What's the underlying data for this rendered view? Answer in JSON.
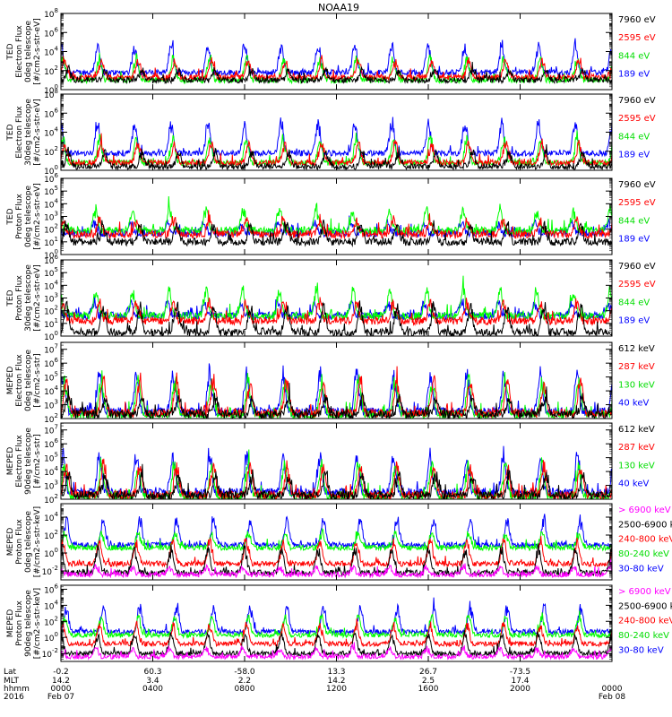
{
  "title": "NOAA19",
  "colors": {
    "black": "#000000",
    "red": "#ff0000",
    "green": "#00ff00",
    "blue": "#0000ff",
    "magenta": "#ff00ff"
  },
  "chart_data": {
    "type": "line",
    "title": "NOAA19",
    "x_ticks": [
      "0000",
      "0400",
      "0800",
      "1200",
      "1600",
      "2000",
      "0000"
    ],
    "x_range_hours": [
      0,
      24
    ],
    "footer": {
      "row_labels": [
        "Lat",
        "MLT",
        "hhmm",
        "2016"
      ],
      "columns": [
        {
          "hour": 0,
          "lat": "-0.2",
          "mlt": "14.2",
          "hhmm": "0000",
          "date": "Feb 07"
        },
        {
          "hour": 4,
          "lat": "60.3",
          "mlt": "3.4",
          "hhmm": "0400",
          "date": ""
        },
        {
          "hour": 8,
          "lat": "-58.0",
          "mlt": "2.2",
          "hhmm": "0800",
          "date": ""
        },
        {
          "hour": 12,
          "lat": "13.3",
          "mlt": "14.2",
          "hhmm": "1200",
          "date": ""
        },
        {
          "hour": 16,
          "lat": "26.7",
          "mlt": "2.5",
          "hhmm": "1600",
          "date": ""
        },
        {
          "hour": 20,
          "lat": "-73.5",
          "mlt": "17.4",
          "hhmm": "2000",
          "date": ""
        },
        {
          "hour": 24,
          "lat": "",
          "mlt": "",
          "hhmm": "0000",
          "date": "Feb 08"
        }
      ]
    },
    "panels": [
      {
        "ylabel": [
          "TED",
          "Electron Flux",
          "0deg telescope",
          "[#/cm2-s-str-eV]"
        ],
        "yticks": [
          {
            "exp": 0,
            "label": "10",
            "sup": "0"
          },
          {
            "exp": 2,
            "label": "10",
            "sup": "2"
          },
          {
            "exp": 4,
            "label": "10",
            "sup": "4"
          },
          {
            "exp": 6,
            "label": "10",
            "sup": "6"
          },
          {
            "exp": 8,
            "label": "10",
            "sup": "8"
          }
        ],
        "ylim_log10": [
          0,
          8
        ],
        "series": [
          {
            "name": "7960 eV",
            "color": "#000000",
            "base": 1.0,
            "peak": 2.3,
            "period": 1.6,
            "phase": 0.05
          },
          {
            "name": "2595 eV",
            "color": "#ff0000",
            "base": 1.3,
            "peak": 3.4,
            "period": 1.6,
            "phase": 0.15
          },
          {
            "name": "844 eV",
            "color": "#00ff00",
            "base": 1.0,
            "peak": 3.8,
            "period": 1.6,
            "phase": 0.2
          },
          {
            "name": "189 eV",
            "color": "#0000ff",
            "base": 1.8,
            "peak": 5.2,
            "period": 1.6,
            "phase": 0.25
          }
        ]
      },
      {
        "ylabel": [
          "TED",
          "Electron Flux",
          "30deg telescope",
          "[#/cm2-s-str-eV]"
        ],
        "yticks": [
          {
            "exp": 0,
            "label": "10",
            "sup": "0"
          },
          {
            "exp": 2,
            "label": "10",
            "sup": "2"
          },
          {
            "exp": 4,
            "label": "10",
            "sup": "4"
          },
          {
            "exp": 6,
            "label": "10",
            "sup": "6"
          },
          {
            "exp": 8,
            "label": "10",
            "sup": "8"
          }
        ],
        "ylim_log10": [
          0,
          8
        ],
        "series": [
          {
            "name": "7960 eV",
            "color": "#000000",
            "base": 0.4,
            "peak": 2.2,
            "period": 1.6,
            "phase": 0.05
          },
          {
            "name": "2595 eV",
            "color": "#ff0000",
            "base": 0.8,
            "peak": 3.2,
            "period": 1.6,
            "phase": 0.15
          },
          {
            "name": "844 eV",
            "color": "#00ff00",
            "base": 0.8,
            "peak": 3.8,
            "period": 1.6,
            "phase": 0.2
          },
          {
            "name": "189 eV",
            "color": "#0000ff",
            "base": 1.8,
            "peak": 5.5,
            "period": 1.6,
            "phase": 0.25
          }
        ]
      },
      {
        "ylabel": [
          "TED",
          "Proton Flux",
          "0deg telescope",
          "[#/cm2-s-str-eV]"
        ],
        "yticks": [
          {
            "exp": 0,
            "label": "10",
            "sup": "0"
          },
          {
            "exp": 1,
            "label": "10",
            "sup": "1"
          },
          {
            "exp": 2,
            "label": "10",
            "sup": "2"
          },
          {
            "exp": 3,
            "label": "10",
            "sup": "3"
          },
          {
            "exp": 4,
            "label": "10",
            "sup": "4"
          },
          {
            "exp": 5,
            "label": "10",
            "sup": "5"
          },
          {
            "exp": 6,
            "label": "10",
            "sup": "6"
          }
        ],
        "ylim_log10": [
          0,
          6
        ],
        "series": [
          {
            "name": "7960 eV",
            "color": "#000000",
            "base": 1.0,
            "peak": 2.6,
            "period": 1.6,
            "phase": 0.1
          },
          {
            "name": "2595 eV",
            "color": "#ff0000",
            "base": 1.6,
            "peak": 3.0,
            "period": 1.6,
            "phase": 0.2
          },
          {
            "name": "844 eV",
            "color": "#00ff00",
            "base": 1.9,
            "peak": 3.9,
            "period": 1.6,
            "phase": 0.3
          },
          {
            "name": "189 eV",
            "color": "#0000ff",
            "base": 1.7,
            "peak": 2.6,
            "period": 1.6,
            "phase": 0.35
          }
        ]
      },
      {
        "ylabel": [
          "TED",
          "Proton Flux",
          "30deg telescope",
          "[#/cm2-s-str-eV]"
        ],
        "yticks": [
          {
            "exp": 0,
            "label": "10",
            "sup": "0"
          },
          {
            "exp": 1,
            "label": "10",
            "sup": "1"
          },
          {
            "exp": 2,
            "label": "10",
            "sup": "2"
          },
          {
            "exp": 3,
            "label": "10",
            "sup": "3"
          },
          {
            "exp": 4,
            "label": "10",
            "sup": "4"
          },
          {
            "exp": 5,
            "label": "10",
            "sup": "5"
          },
          {
            "exp": 6,
            "label": "10",
            "sup": "6"
          }
        ],
        "ylim_log10": [
          0,
          6
        ],
        "series": [
          {
            "name": "7960 eV",
            "color": "#000000",
            "base": 0.3,
            "peak": 2.8,
            "period": 1.6,
            "phase": 0.1
          },
          {
            "name": "2595 eV",
            "color": "#ff0000",
            "base": 1.2,
            "peak": 3.0,
            "period": 1.6,
            "phase": 0.2
          },
          {
            "name": "844 eV",
            "color": "#00ff00",
            "base": 1.6,
            "peak": 4.0,
            "period": 1.6,
            "phase": 0.3
          },
          {
            "name": "189 eV",
            "color": "#0000ff",
            "base": 1.6,
            "peak": 2.8,
            "period": 1.6,
            "phase": 0.35
          }
        ]
      },
      {
        "ylabel": [
          "MEPED",
          "Electron Flux",
          "0deg telescope",
          "[#/cm2-s-str]"
        ],
        "yticks": [
          {
            "exp": 2,
            "label": "10",
            "sup": "2"
          },
          {
            "exp": 3,
            "label": "10",
            "sup": "3"
          },
          {
            "exp": 4,
            "label": "10",
            "sup": "4"
          },
          {
            "exp": 5,
            "label": "10",
            "sup": "5"
          },
          {
            "exp": 6,
            "label": "10",
            "sup": "6"
          },
          {
            "exp": 7,
            "label": "10",
            "sup": "7"
          }
        ],
        "ylim_log10": [
          2,
          7.5
        ],
        "series": [
          {
            "name": "612 keV",
            "color": "#000000",
            "base": 2.3,
            "peak": 3.8,
            "period": 1.6,
            "phase": 0.05
          },
          {
            "name": "287 keV",
            "color": "#ff0000",
            "base": 2.4,
            "peak": 5.2,
            "period": 1.6,
            "phase": 0.1
          },
          {
            "name": "130 keV",
            "color": "#00ff00",
            "base": 2.3,
            "peak": 5.3,
            "period": 1.6,
            "phase": 0.15
          },
          {
            "name": "40 keV",
            "color": "#0000ff",
            "base": 2.5,
            "peak": 5.8,
            "period": 1.6,
            "phase": 0.2
          }
        ]
      },
      {
        "ylabel": [
          "MEPED",
          "Electron Flux",
          "90deg telescope",
          "[#/cm2-s-str]"
        ],
        "yticks": [
          {
            "exp": 2,
            "label": "10",
            "sup": "2"
          },
          {
            "exp": 3,
            "label": "10",
            "sup": "3"
          },
          {
            "exp": 4,
            "label": "10",
            "sup": "4"
          },
          {
            "exp": 5,
            "label": "10",
            "sup": "5"
          },
          {
            "exp": 6,
            "label": "10",
            "sup": "6"
          },
          {
            "exp": 7,
            "label": "10",
            "sup": "7"
          }
        ],
        "ylim_log10": [
          2,
          7.5
        ],
        "series": [
          {
            "name": "612 keV",
            "color": "#000000",
            "base": 2.3,
            "peak": 4.0,
            "period": 1.6,
            "phase": 0.05
          },
          {
            "name": "287 keV",
            "color": "#ff0000",
            "base": 2.3,
            "peak": 4.8,
            "period": 1.6,
            "phase": 0.1
          },
          {
            "name": "130 keV",
            "color": "#00ff00",
            "base": 2.2,
            "peak": 5.0,
            "period": 1.6,
            "phase": 0.15
          },
          {
            "name": "40 keV",
            "color": "#0000ff",
            "base": 2.5,
            "peak": 5.6,
            "period": 1.6,
            "phase": 0.2
          }
        ]
      },
      {
        "ylabel": [
          "MEPED",
          "Proton Flux",
          "0deg telescope",
          "[#/cm2-s-str-keV]"
        ],
        "yticks": [
          {
            "exp": -2,
            "label": "10",
            "sup": "-2"
          },
          {
            "exp": 0,
            "label": "10",
            "sup": "0"
          },
          {
            "exp": 2,
            "label": "10",
            "sup": "2"
          },
          {
            "exp": 4,
            "label": "10",
            "sup": "4"
          }
        ],
        "ylim_log10": [
          -3,
          5.5
        ],
        "series": [
          {
            "name": "> 6900 keV",
            "color": "#ff00ff",
            "base": -2.4,
            "peak": -1.4,
            "period": 1.6,
            "phase": 0.3
          },
          {
            "name": "2500-6900 keV",
            "color": "#000000",
            "base": -2.2,
            "peak": 1.0,
            "period": 1.6,
            "phase": 0.25
          },
          {
            "name": "240-800 keV",
            "color": "#ff0000",
            "base": -1.2,
            "peak": 1.8,
            "period": 1.6,
            "phase": 0.2
          },
          {
            "name": "80-240 keV",
            "color": "#00ff00",
            "base": 0.6,
            "peak": 2.5,
            "period": 1.6,
            "phase": 0.15
          },
          {
            "name": "30-80 keV",
            "color": "#0000ff",
            "base": 0.9,
            "peak": 4.2,
            "period": 1.6,
            "phase": 0.1
          }
        ]
      },
      {
        "ylabel": [
          "MEPED",
          "Proton Flux",
          "90deg telescope",
          "[#/cm2-s-str-keV]"
        ],
        "yticks": [
          {
            "exp": -2,
            "label": "10",
            "sup": "-2"
          },
          {
            "exp": 0,
            "label": "10",
            "sup": "0"
          },
          {
            "exp": 2,
            "label": "10",
            "sup": "2"
          },
          {
            "exp": 4,
            "label": "10",
            "sup": "4"
          },
          {
            "exp": 6,
            "label": "10",
            "sup": "6"
          }
        ],
        "ylim_log10": [
          -3,
          6.5
        ],
        "series": [
          {
            "name": "> 6900 keV",
            "color": "#ff00ff",
            "base": -2.4,
            "peak": -1.2,
            "period": 1.6,
            "phase": 0.3
          },
          {
            "name": "2500-6900 keV",
            "color": "#000000",
            "base": -2.0,
            "peak": 0.8,
            "period": 1.6,
            "phase": 0.25
          },
          {
            "name": "240-800 keV",
            "color": "#ff0000",
            "base": -0.8,
            "peak": 2.0,
            "period": 1.6,
            "phase": 0.2
          },
          {
            "name": "80-240 keV",
            "color": "#00ff00",
            "base": 0.3,
            "peak": 3.0,
            "period": 1.6,
            "phase": 0.15
          },
          {
            "name": "30-80 keV",
            "color": "#0000ff",
            "base": 0.7,
            "peak": 4.4,
            "period": 1.6,
            "phase": 0.1
          }
        ]
      }
    ]
  }
}
